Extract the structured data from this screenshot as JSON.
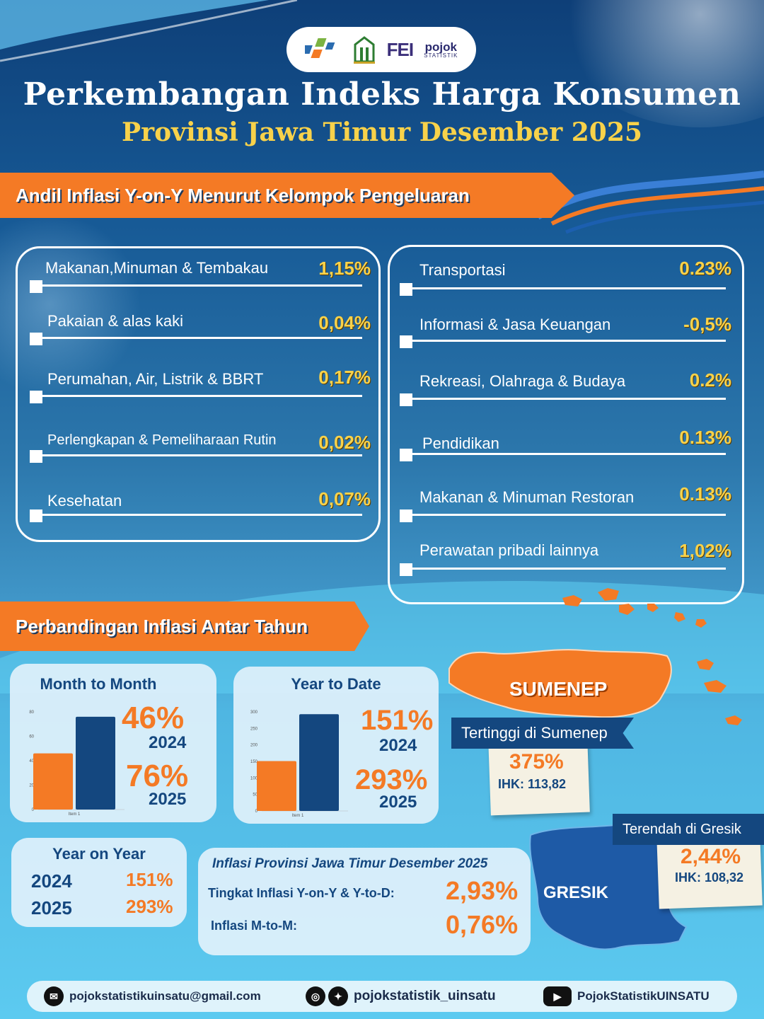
{
  "header": {
    "title": "Perkembangan Indeks Harga Konsumen",
    "subtitle": "Provinsi Jawa Timur Desember 2025",
    "logos": [
      "bps-logo",
      "university-logo",
      "fei-logo",
      "pojok-statistik-logo"
    ],
    "logo_texts": {
      "fei": "FEI",
      "pojok": "pojok",
      "statistik": "STATISTIK"
    }
  },
  "section1": {
    "title": "Andil Inflasi Y-on-Y Menurut Kelompok Pengeluaran",
    "left": [
      {
        "label": "Makanan,Minuman & Tembakau",
        "value": "1,15%"
      },
      {
        "label": "Pakaian & alas kaki",
        "value": "0,04%"
      },
      {
        "label": "Perumahan, Air, Listrik & BBRT",
        "value": "0,17%"
      },
      {
        "label": "Perlengkapan & Pemeliharaan Rutin",
        "value": "0,02%"
      },
      {
        "label": "Kesehatan",
        "value": "0,07%"
      }
    ],
    "right": [
      {
        "label": "Transportasi",
        "value": "0.23%"
      },
      {
        "label": "Informasi & Jasa Keuangan",
        "value": "-0,5%"
      },
      {
        "label": "Rekreasi, Olahraga & Budaya",
        "value": "0.2%"
      },
      {
        "label": "Pendidikan",
        "value": "0.13%"
      },
      {
        "label": "Makanan & Minuman Restoran",
        "value": "0.13%"
      },
      {
        "label": "Perawatan pribadi lainnya",
        "value": "1,02%"
      }
    ]
  },
  "section2": {
    "title": "Perbandingan Inflasi Antar Tahun",
    "mtm": {
      "title": "Month to Month",
      "v2024": "46%",
      "y2024": "2024",
      "v2025": "76%",
      "y2025": "2025"
    },
    "ytd": {
      "title": "Year to Date",
      "v2024": "151%",
      "y2024": "2024",
      "v2025": "293%",
      "y2025": "2025"
    },
    "yoy": {
      "title": "Year on Year",
      "rows": [
        {
          "year": "2024",
          "value": "151%"
        },
        {
          "year": "2025",
          "value": "293%"
        }
      ]
    },
    "summary": {
      "title": "Inflasi Provinsi Jawa Timur Desember 2025",
      "row1_label": "Tingkat Inflasi Y-on-Y & Y-to-D:",
      "row1_value": "2,93%",
      "row2_label": "Inflasi M-to-M:",
      "row2_value": "0,76%"
    },
    "highest": {
      "map_label": "SUMENEP",
      "tag": "Tertinggi di Sumenep",
      "value": "375%",
      "ihk": "IHK: 113,82"
    },
    "lowest": {
      "map_label": "GRESIK",
      "tag": "Terendah di Gresik",
      "value": "2,44%",
      "ihk": "IHK: 108,32"
    }
  },
  "chart_data": [
    {
      "type": "bar",
      "categories": [
        "Item 1"
      ],
      "series": [
        {
          "values": [
            46
          ]
        },
        {
          "values": [
            76
          ]
        }
      ],
      "ylim": [
        0,
        80
      ],
      "yticks": [
        0,
        20,
        40,
        60,
        80
      ],
      "colors": [
        "#f47a25",
        "#14477f"
      ]
    },
    {
      "type": "bar",
      "categories": [
        "Item 1"
      ],
      "series": [
        {
          "values": [
            151
          ]
        },
        {
          "values": [
            293
          ]
        }
      ],
      "ylim": [
        0,
        300
      ],
      "yticks": [
        0,
        50,
        100,
        150,
        200,
        250,
        300
      ],
      "colors": [
        "#f47a25",
        "#14477f"
      ]
    }
  ],
  "footer": {
    "email": "pojokstatistikuinsatu@gmail.com",
    "social": "pojokstatistik_uinsatu",
    "youtube": "PojokStatistikUINSATU",
    "icons": [
      "mail-icon",
      "instagram-icon",
      "twitter-icon",
      "youtube-icon"
    ]
  },
  "colors": {
    "orange": "#f47a25",
    "navy": "#14477f",
    "gold": "#f8d24a"
  }
}
